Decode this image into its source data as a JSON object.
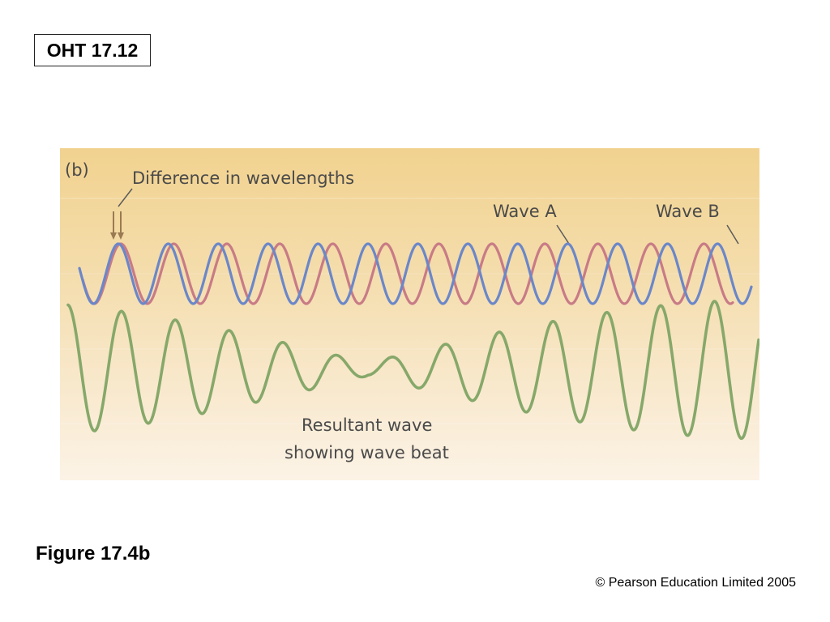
{
  "slide": {
    "oht_label": "OHT 17.12",
    "caption": "Figure 17.4b",
    "copyright": "© Pearson Education Limited 2005"
  },
  "figure": {
    "panel_label": "(b)",
    "difference_label": "Difference in wavelengths",
    "wave_a_label": "Wave A",
    "wave_b_label": "Wave B",
    "resultant_label_line1": "Resultant wave",
    "resultant_label_line2": "showing wave beat"
  },
  "colors": {
    "wave_a": "#c87b86",
    "wave_b": "#6b87c9",
    "resultant": "#86a86a",
    "arrow": "#9a7a52"
  },
  "icons": {
    "difference_marker": "double-down-arrow-icon"
  }
}
